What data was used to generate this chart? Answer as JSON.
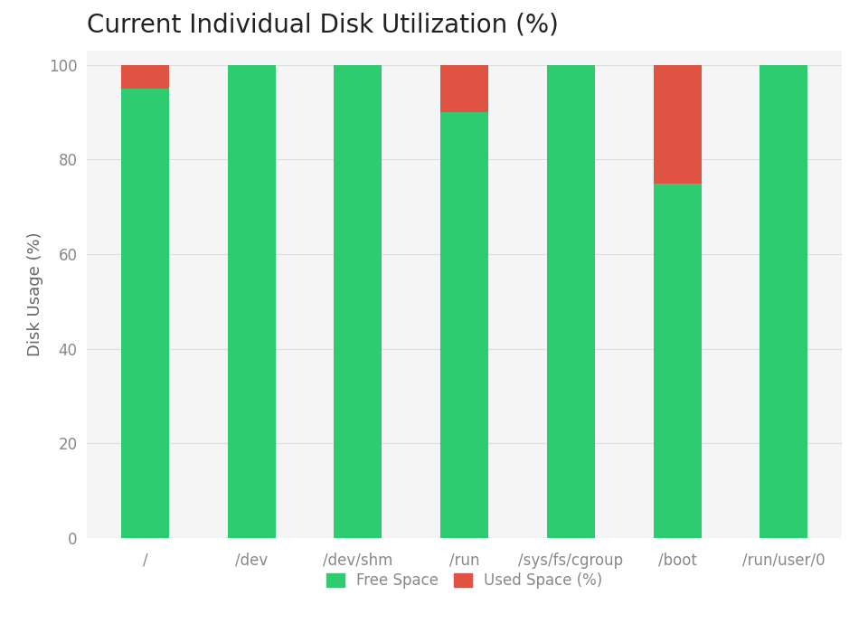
{
  "title": "Current Individual Disk Utilization (%)",
  "ylabel": "Disk Usage (%)",
  "categories": [
    "/",
    "/dev",
    "/dev/shm",
    "/run",
    "/sys/fs/cgroup",
    "/boot",
    "/run/user/0"
  ],
  "free_space": [
    95,
    100,
    100,
    90,
    100,
    75,
    100
  ],
  "used_space": [
    5,
    0,
    0,
    10,
    0,
    25,
    0
  ],
  "free_color": "#2ecc71",
  "used_color": "#e05242",
  "background_color": "#ffffff",
  "axes_bg_color": "#f5f5f5",
  "grid_color": "#dddddd",
  "ylim": [
    0,
    103
  ],
  "yticks": [
    0,
    20,
    40,
    60,
    80,
    100
  ],
  "legend_labels": [
    "Free Space",
    "Used Space (%)"
  ],
  "title_fontsize": 20,
  "axis_label_fontsize": 13,
  "tick_fontsize": 12,
  "legend_fontsize": 12,
  "bar_width": 0.45,
  "tick_color": "#888888",
  "label_color": "#666666"
}
